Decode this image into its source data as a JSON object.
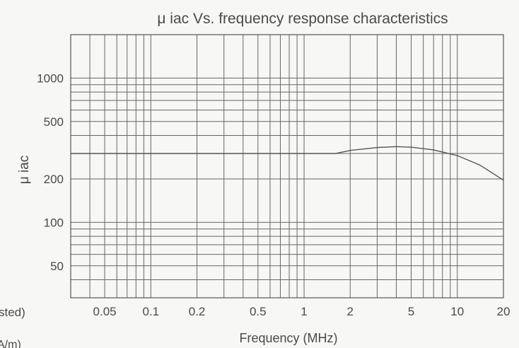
{
  "chart_data": {
    "type": "line",
    "title": "μ iac Vs. frequency response characteristics",
    "xlabel": "Frequency (MHz)",
    "ylabel": "μ iac",
    "x_scale": "log",
    "y_scale": "log",
    "xlim": [
      0.03,
      20
    ],
    "ylim": [
      30,
      2000
    ],
    "x_ticks": [
      {
        "value": 0.05,
        "label": "0.05"
      },
      {
        "value": 0.1,
        "label": "0.1"
      },
      {
        "value": 0.2,
        "label": "0.2"
      },
      {
        "value": 0.5,
        "label": "0.5"
      },
      {
        "value": 1,
        "label": "1"
      },
      {
        "value": 2,
        "label": "2"
      },
      {
        "value": 5,
        "label": "5"
      },
      {
        "value": 10,
        "label": "10"
      },
      {
        "value": 20,
        "label": "20"
      }
    ],
    "y_ticks": [
      {
        "value": 50,
        "label": "50"
      },
      {
        "value": 100,
        "label": "100"
      },
      {
        "value": 200,
        "label": "200"
      },
      {
        "value": 500,
        "label": "500"
      },
      {
        "value": 1000,
        "label": "1000"
      }
    ],
    "grid": true,
    "series": [
      {
        "x": [
          0.03,
          0.1,
          0.5,
          1.0,
          1.6,
          2.0,
          3.0,
          4.0,
          5.0,
          7.0,
          10.0,
          14.0,
          20.0
        ],
        "y": [
          300,
          300,
          300,
          300,
          300,
          315,
          330,
          335,
          332,
          318,
          290,
          250,
          196
        ]
      }
    ],
    "line_color": "#555555"
  },
  "cropped_labels": {
    "left_fragment": "sted)",
    "bottom_left_fragment": "A/m)"
  }
}
